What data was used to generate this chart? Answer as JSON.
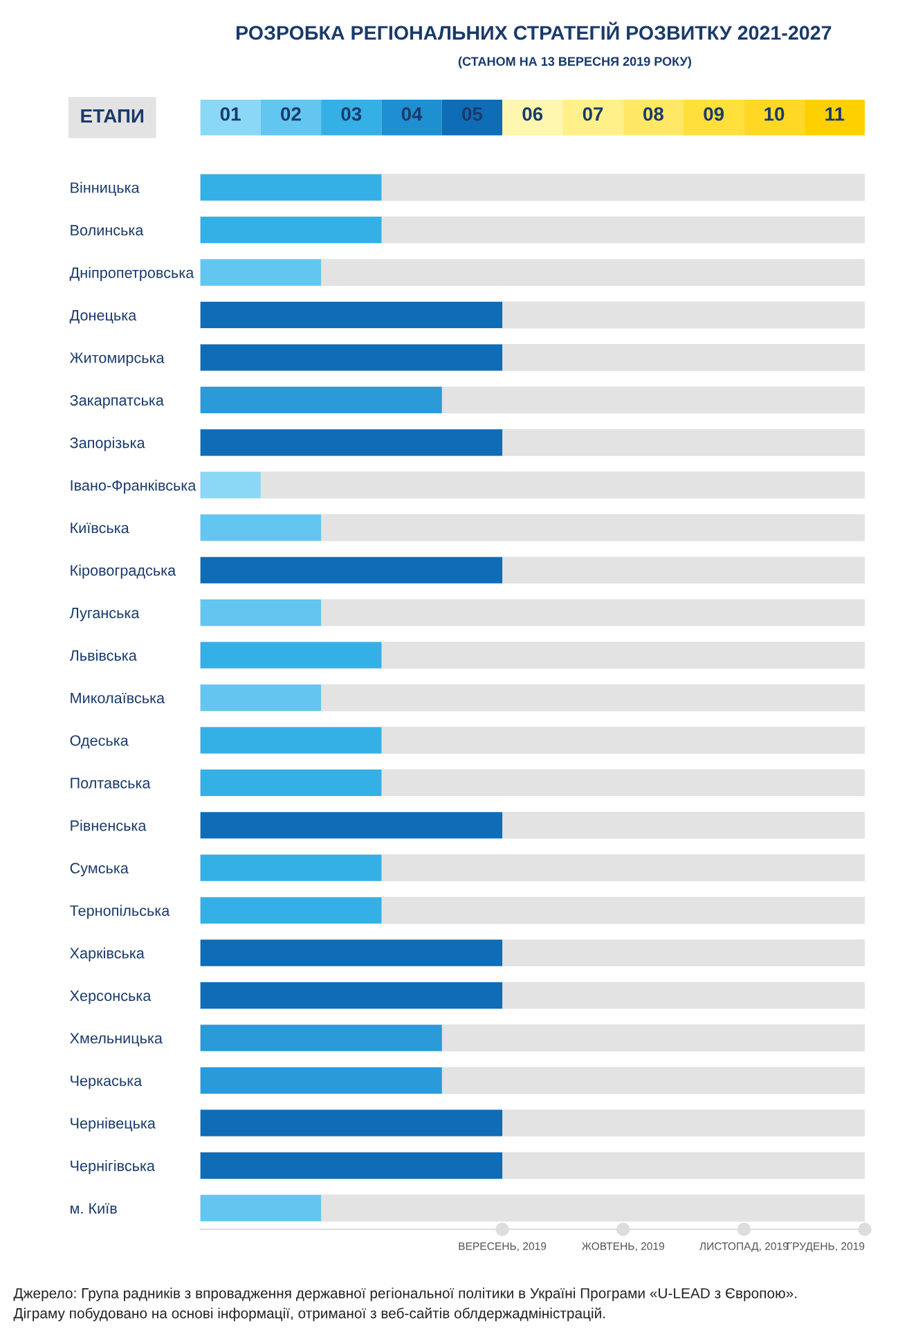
{
  "chart_data": {
    "type": "bar",
    "orientation": "horizontal",
    "title": "РОЗРОБКА РЕГІОНАЛЬНИХ СТРАТЕГІЙ РОЗВИТКУ 2021-2027",
    "subtitle": "(СТАНОМ НА 13 ВЕРЕСНЯ 2019 РОКУ)",
    "categories": [
      "Вінницька",
      "Волинська",
      "Дніпропетровська",
      "Донецька",
      "Житомирська",
      "Закарпатська",
      "Запорізька",
      "Івано-Франківська",
      "Київська",
      "Кіровоградська",
      "Луганська",
      "Львівська",
      "Миколаївська",
      "Одеська",
      "Полтавська",
      "Рівненська",
      "Сумська",
      "Тернопільська",
      "Харківська",
      "Херсонська",
      "Хмельницька",
      "Черкаська",
      "Чернівецька",
      "Чернігівська",
      "м. Київ"
    ],
    "values": [
      3,
      3,
      2,
      5,
      5,
      4,
      5,
      1,
      2,
      5,
      2,
      3,
      2,
      3,
      3,
      5,
      3,
      3,
      5,
      5,
      4,
      4,
      5,
      5,
      2
    ],
    "base": [
      0.5,
      0.5,
      0.5,
      0.5,
      0.5,
      0.5,
      0.5,
      0.5,
      0.5,
      0.5,
      0.5,
      0.5,
      0.5,
      0.5,
      0.5,
      0.5,
      0.5,
      0.5,
      0.5,
      0.5,
      0.5,
      0.5,
      0.5,
      0.5,
      0.5
    ],
    "colors": [
      "#35b0e6",
      "#35b0e6",
      "#62c6f0",
      "#0f6cb6",
      "#0f6cb6",
      "#2a9ad8",
      "#0f6cb6",
      "#8ad8f5",
      "#62c6f0",
      "#0f6cb6",
      "#62c6f0",
      "#35b0e6",
      "#62c6f0",
      "#35b0e6",
      "#35b0e6",
      "#0f6cb6",
      "#35b0e6",
      "#35b0e6",
      "#0f6cb6",
      "#0f6cb6",
      "#2a9ad8",
      "#2a9ad8",
      "#0f6cb6",
      "#0f6cb6",
      "#62c6f0"
    ],
    "xlim": [
      0.5,
      11.5
    ],
    "xticks": [
      {
        "value": 1,
        "label": "01"
      },
      {
        "value": 2,
        "label": "02"
      },
      {
        "value": 3,
        "label": "03"
      },
      {
        "value": 4,
        "label": "04"
      },
      {
        "value": 5,
        "label": "05"
      },
      {
        "value": 6,
        "label": "06"
      },
      {
        "value": 7,
        "label": "07"
      },
      {
        "value": 8,
        "label": "08"
      },
      {
        "value": 9,
        "label": "09"
      },
      {
        "value": 10,
        "label": "10"
      },
      {
        "value": 11,
        "label": "11"
      }
    ],
    "xlabel": "ЕТАПИ",
    "grid": "y",
    "annotations": [
      "ВЕРЕСЕНЬ, 2019",
      "ЖОВТЕНЬ, 2019",
      "ЛИСТОПАД, 2019",
      "ГРУДЕНЬ, 2019",
      "Джерело: Група радників з впровадження державної регіональної політики в Україні Програми «U-LEAD з Європою».",
      "Діграму побудовано на основі інформації, отриманої з веб-сайтів облдержадміністрацій."
    ]
  }
}
